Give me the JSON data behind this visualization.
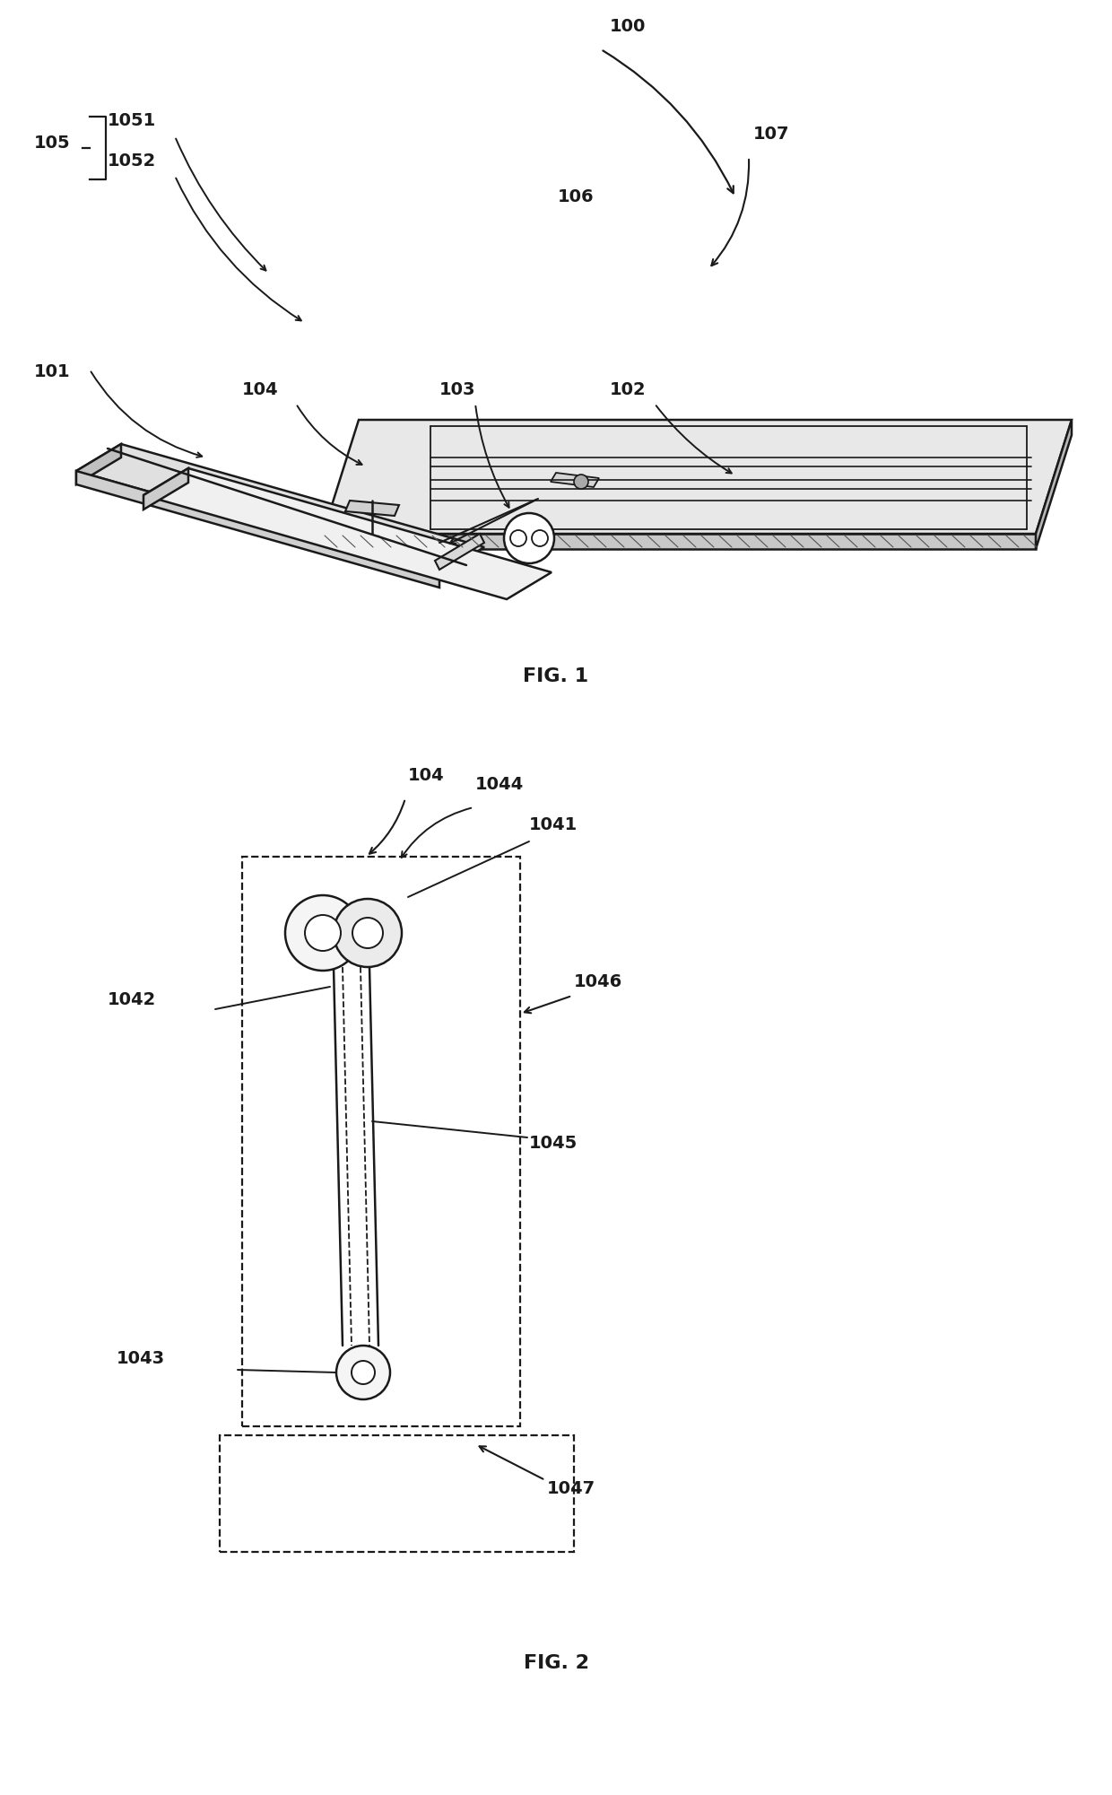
{
  "bg_color": "#ffffff",
  "lc": "#1a1a1a",
  "lw": 1.8,
  "fig1_label": "FIG. 1",
  "fig2_label": "FIG. 2",
  "fontsize": 14
}
